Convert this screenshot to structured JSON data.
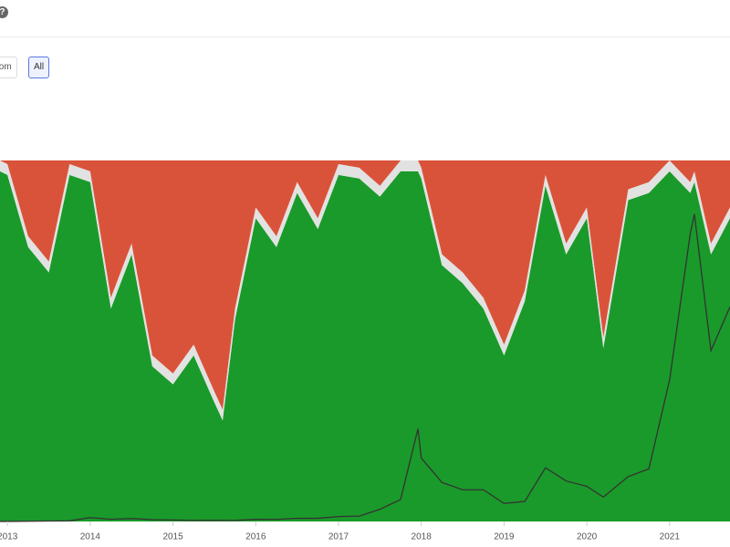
{
  "controls": {
    "help": "?",
    "buttons": [
      "tom",
      "All"
    ]
  },
  "chart_data": {
    "type": "area",
    "stacked": true,
    "x": [
      2012.91,
      2013,
      2013.25,
      2013.5,
      2013.75,
      2014,
      2014.25,
      2014.5,
      2014.75,
      2015,
      2015.25,
      2015.5,
      2015.6,
      2015.75,
      2016,
      2016.25,
      2016.5,
      2016.75,
      2017,
      2017.25,
      2017.5,
      2017.75,
      2017.96,
      2018,
      2018.25,
      2018.5,
      2018.75,
      2019,
      2019.25,
      2019.5,
      2019.75,
      2020,
      2020.2,
      2020.5,
      2020.75,
      2021,
      2021.25,
      2021.3,
      2021.5,
      2021.73
    ],
    "xlim": [
      2012.91,
      2021.73
    ],
    "xticks": [
      2013,
      2014,
      2015,
      2016,
      2017,
      2018,
      2019,
      2020,
      2021
    ],
    "ylim": [
      0,
      100
    ],
    "y2lim": [
      0,
      74000
    ],
    "series": [
      {
        "color": "#1a9a2a",
        "values": [
          97,
          96,
          76,
          69,
          96,
          94,
          59,
          74,
          43,
          38,
          46,
          33,
          28,
          56,
          84,
          76,
          91,
          81,
          96,
          95,
          90,
          97,
          97,
          95,
          71,
          66,
          59,
          46,
          61,
          93,
          74,
          84,
          48,
          89,
          91,
          97,
          91,
          94,
          74,
          84
        ]
      },
      {
        "color": "#e2e2e2",
        "values": [
          3,
          3,
          3,
          3,
          3,
          3,
          3,
          3,
          3,
          3,
          3,
          3,
          3,
          3,
          3,
          3,
          3,
          3,
          3,
          3,
          3,
          3,
          3,
          3,
          3,
          3,
          3,
          3,
          3,
          3,
          3,
          3,
          3,
          3,
          3,
          3,
          3,
          3,
          3,
          3
        ]
      },
      {
        "color": "#d9533a",
        "values": [
          0,
          1,
          21,
          28,
          1,
          3,
          38,
          23,
          54,
          59,
          51,
          64,
          69,
          41,
          13,
          21,
          6,
          16,
          1,
          2,
          7,
          0,
          0,
          2,
          26,
          31,
          38,
          51,
          36,
          4,
          23,
          13,
          49,
          8,
          6,
          0,
          6,
          3,
          23,
          13
        ]
      },
      {
        "color": "#333333",
        "axis": "y2",
        "type": "line",
        "values": [
          12,
          13,
          50,
          90,
          130,
          800,
          450,
          600,
          380,
          300,
          240,
          260,
          230,
          240,
          430,
          420,
          650,
          640,
          1000,
          1100,
          2500,
          4500,
          19000,
          13000,
          8000,
          6500,
          6500,
          3700,
          4100,
          11000,
          8300,
          7200,
          5000,
          9200,
          10800,
          29000,
          59000,
          63000,
          35000,
          44000
        ]
      }
    ]
  }
}
